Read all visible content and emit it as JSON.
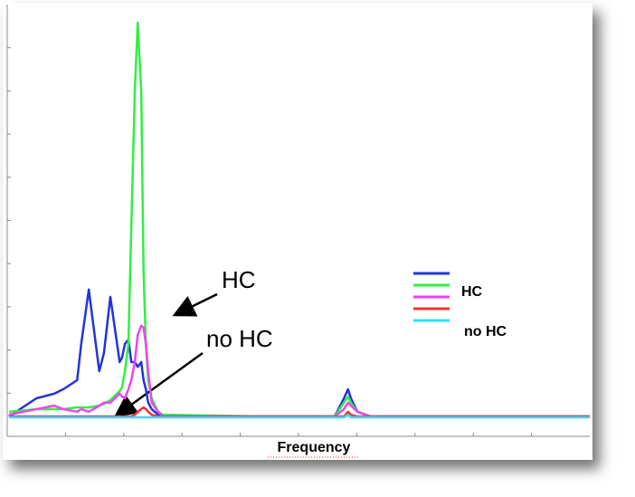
{
  "chart_data": {
    "type": "line",
    "x_label": "Frequency",
    "x": [
      0.03,
      0.5,
      0.81,
      0.96,
      1.2,
      1.27,
      1.4,
      1.58,
      1.66,
      1.77,
      1.93,
      1.97,
      2.02,
      2.08,
      2.13,
      2.19,
      2.24,
      2.3,
      2.34,
      2.38,
      2.42,
      2.48,
      2.59,
      2.67,
      4.53,
      5.62,
      5.78,
      5.85,
      5.9,
      6.01,
      6.24,
      7.64,
      10
    ],
    "series": [
      {
        "color": "#2233dd",
        "values": [
          0.46,
          0.88,
          0.99,
          1.09,
          1.3,
          2.14,
          3.4,
          1.51,
          1.93,
          3.23,
          1.72,
          1.82,
          2.14,
          2.24,
          1.72,
          1.72,
          1.61,
          1.72,
          1.3,
          1.09,
          0.78,
          0.63,
          0.5,
          0.46,
          0.46,
          0.46,
          0.88,
          1.09,
          0.88,
          0.57,
          0.46,
          0.46,
          0.46
        ]
      },
      {
        "color": "#33ee44",
        "values": [
          0.57,
          0.63,
          0.63,
          0.63,
          0.67,
          0.67,
          0.67,
          0.71,
          0.75,
          0.84,
          1.05,
          1.13,
          1.51,
          2.14,
          4.86,
          8.01,
          9.58,
          8.01,
          3.82,
          2.14,
          1.3,
          0.88,
          0.57,
          0.5,
          0.46,
          0.46,
          0.78,
          0.92,
          0.78,
          0.57,
          0.46,
          0.46,
          0.46
        ]
      },
      {
        "color": "#ee44ee",
        "values": [
          0.5,
          0.63,
          0.71,
          0.63,
          0.57,
          0.63,
          0.57,
          0.71,
          0.78,
          0.78,
          0.99,
          0.92,
          0.88,
          1.09,
          1.3,
          1.72,
          2.35,
          2.56,
          2.52,
          2.14,
          1.51,
          0.78,
          0.57,
          0.46,
          0.46,
          0.46,
          0.63,
          0.78,
          0.71,
          0.57,
          0.46,
          0.46,
          0.46
        ]
      },
      {
        "color": "#ee3333",
        "values": [
          0.46,
          0.46,
          0.46,
          0.46,
          0.46,
          0.46,
          0.46,
          0.46,
          0.46,
          0.46,
          0.46,
          0.46,
          0.46,
          0.46,
          0.46,
          0.5,
          0.57,
          0.63,
          0.67,
          0.63,
          0.57,
          0.5,
          0.46,
          0.46,
          0.46,
          0.46,
          0.46,
          0.57,
          0.5,
          0.46,
          0.46,
          0.46,
          0.46
        ]
      },
      {
        "color": "#33ddee",
        "values": [
          0.44,
          0.44,
          0.44,
          0.44,
          0.44,
          0.44,
          0.44,
          0.44,
          0.44,
          0.44,
          0.44,
          0.44,
          0.44,
          0.44,
          0.44,
          0.44,
          0.44,
          0.44,
          0.44,
          0.44,
          0.44,
          0.44,
          0.44,
          0.44,
          0.44,
          0.44,
          0.44,
          0.5,
          0.44,
          0.44,
          0.44,
          0.44,
          0.44
        ]
      }
    ],
    "legend": [
      {
        "label": "HC",
        "colors": [
          "#2233dd",
          "#33ee44",
          "#ee44ee"
        ]
      },
      {
        "label": "no HC",
        "colors": [
          "#ee3333",
          "#33ddee"
        ]
      }
    ],
    "annotations": [
      {
        "text": "HC"
      },
      {
        "text": "no HC"
      }
    ],
    "xlim": [
      0,
      10
    ],
    "ylim": [
      0,
      10
    ],
    "xticks": [
      1,
      2,
      3,
      4,
      5,
      6,
      7,
      8,
      9
    ],
    "yticks": [
      1,
      2,
      3,
      4,
      5,
      6,
      7,
      8,
      9
    ]
  }
}
